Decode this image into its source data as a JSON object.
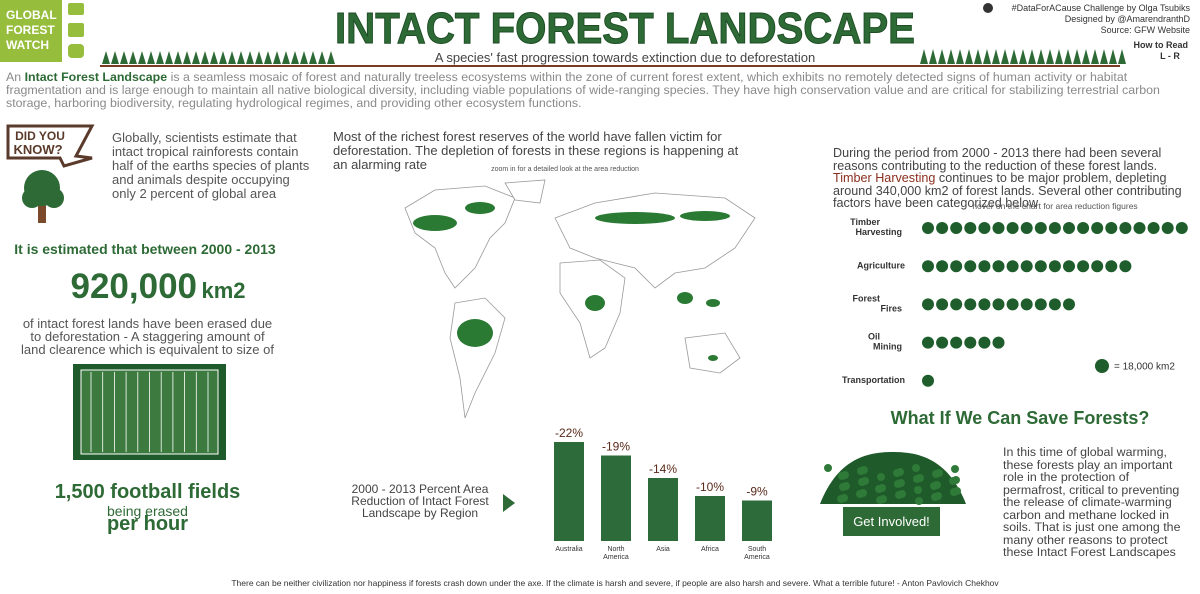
{
  "header": {
    "logo": [
      "GLOBAL",
      "FOREST",
      "WATCH"
    ],
    "title": "INTACT FOREST LANDSCAPE",
    "subtitle": "A species' fast progression towards extinction due to deforestation",
    "credits": [
      "#DataForACause Challenge by Olga Tsubiks",
      "Designed by @AmarendranthD",
      "Source: GFW Website"
    ],
    "how_to_read": [
      "How to Read",
      "L - R"
    ]
  },
  "intro": {
    "lead": "An",
    "term": "Intact Forest Landscape",
    "text": "is a seamless mosaic of forest and naturally treeless ecosystems within the zone of current forest extent, which exhibits no remotely detected signs of human activity or habitat fragmentation and is large enough to maintain all native biological diversity, including viable populations of wide-ranging species. They have high conservation value and are critical for stabilizing terrestrial carbon storage, harboring biodiversity, regulating hydrological regimes, and providing other ecosystem functions."
  },
  "did_you_know": {
    "badge": [
      "DID YOU",
      "KNOW?"
    ],
    "text": "Globally, scientists estimate that intact tropical rainforests contain half of the earths species of plants and animals despite occupying only 2 percent of global area"
  },
  "stat": {
    "lead": "It is estimated that between 2000 - 2013",
    "number": "920,000",
    "unit": "km2",
    "text": "of intact forest lands have been erased due to deforestation - A staggering amount of land clearence which is equivalent to size of",
    "fields": "1,500 football fields",
    "being": "being erased",
    "rate": "per hour"
  },
  "map": {
    "text": "Most of the richest forest reserves of the world have fallen victim for deforestation. The depletion of forests in these regions is happening at an alarming rate",
    "note": "zoom in for a detailed look at the area reduction"
  },
  "causes_text": {
    "before": "During the period from 2000 - 2013 there had been several reasons contributing to the reduction of these forest lands.",
    "highlight": "Timber Harvesting",
    "after": "continues to be major problem, depleting around 340,000 km2 of forest lands. Several other contributing factors have been categorized below"
  },
  "save": {
    "title": "What If We Can Save Forests?",
    "text": "In this time of global warming, these forests play an important role in the protection of permafrost, critical to preventing the release of climate-warming carbon and methane locked in soils. That is just one among the many other reasons to protect these Intact Forest Landscapes",
    "button": "Get Involved!"
  },
  "quote": "There can be neither civilization nor happiness if forests crash down under the axe. If the climate is harsh and severe, if people are also harsh and severe. What a terrible future!  - Anton Pavlovich Chekhov",
  "chart_data": [
    {
      "type": "bar",
      "title": "2000 - 2013 Percent Area Reduction of Intact Forest Landscape by Region",
      "categories": [
        "Australia",
        "North America",
        "Asia",
        "Africa",
        "South America"
      ],
      "values": [
        -22,
        -19,
        -14,
        -10,
        -9
      ],
      "value_labels": [
        "-22%",
        "-19%",
        "-14%",
        "-10%",
        "-9%"
      ],
      "color": "#2e6b3a"
    },
    {
      "type": "dot",
      "note": "hover on the chart for area reduction figures",
      "categories": [
        "Timber Harvesting",
        "Agriculture",
        "Forest Fires",
        "Oil Mining",
        "Transportation"
      ],
      "values": [
        19,
        15,
        11,
        6,
        1
      ],
      "legend": "= 18,000 km2",
      "color": "#1f5e2c"
    }
  ]
}
